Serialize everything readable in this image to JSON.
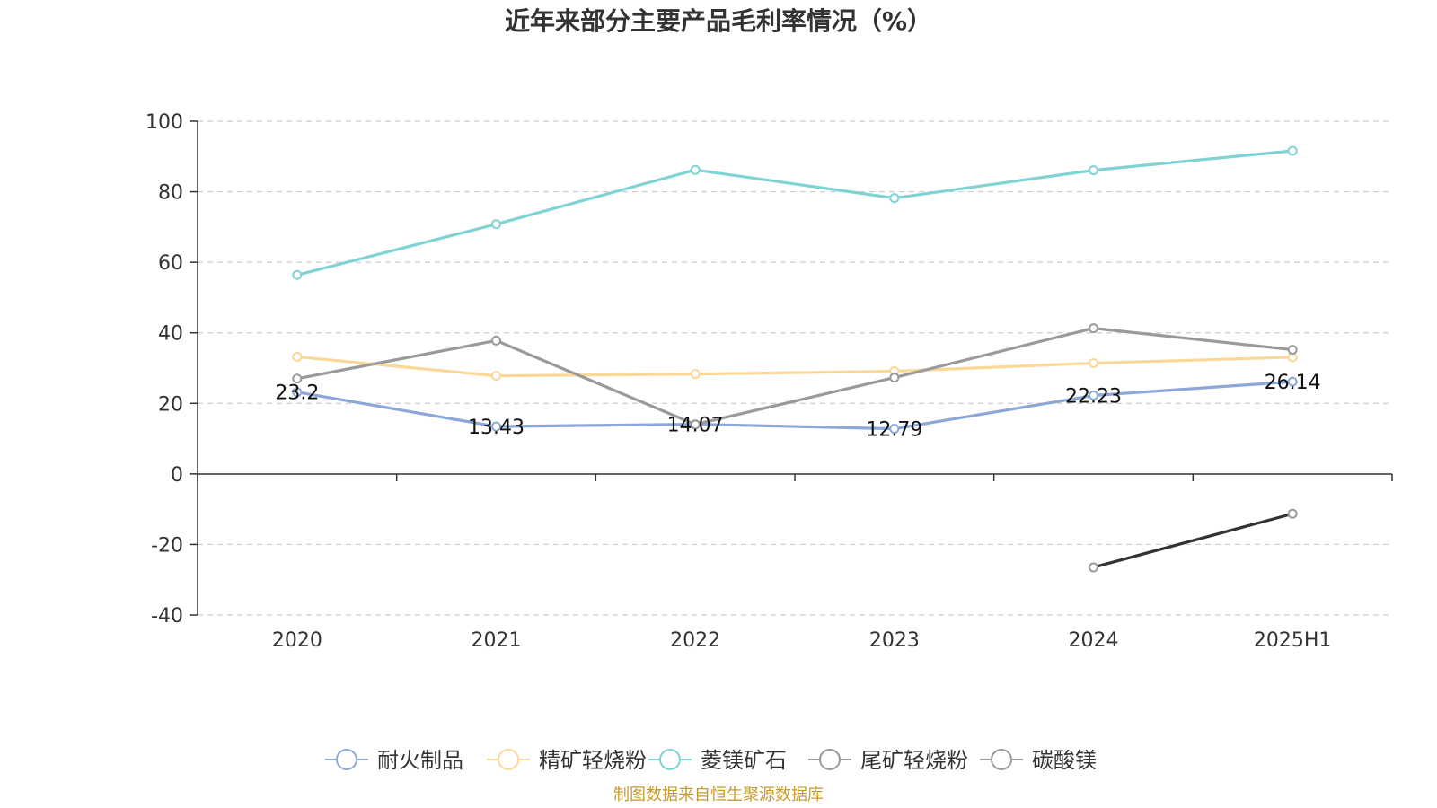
{
  "chart_data": {
    "type": "line",
    "title": "近年来部分主要产品毛利率情况（%）",
    "categories": [
      "2020",
      "2021",
      "2022",
      "2023",
      "2024",
      "2025H1"
    ],
    "ylim": [
      -40,
      100
    ],
    "yticks": [
      100,
      80,
      60,
      40,
      20,
      0,
      -20,
      -40
    ],
    "grid": true,
    "legend_position": "bottom",
    "series": [
      {
        "name": "耐火制品",
        "color": "#8ba8d8",
        "values": [
          23.2,
          13.43,
          14.07,
          12.79,
          22.23,
          26.14
        ],
        "show_labels": true
      },
      {
        "name": "精矿轻烧粉",
        "color": "#fcd898",
        "values": [
          33.2,
          27.8,
          28.3,
          29.1,
          31.4,
          33.1
        ],
        "show_labels": false
      },
      {
        "name": "菱镁矿石",
        "color": "#80d3d3",
        "values": [
          56.4,
          70.8,
          86.2,
          78.2,
          86.1,
          91.6
        ],
        "show_labels": false
      },
      {
        "name": "尾矿轻烧粉",
        "color": "#9a9a9a",
        "values": [
          27.0,
          37.8,
          14.0,
          27.3,
          41.3,
          35.2
        ],
        "show_labels": false
      },
      {
        "name": "碳酸镁",
        "color": "#333333",
        "marker_color": "#9a9a9a",
        "legend_color": "#9a9a9a",
        "values": [
          null,
          null,
          null,
          null,
          -26.5,
          -11.3
        ],
        "show_labels": false
      }
    ]
  },
  "source": "制图数据来自恒生聚源数据库"
}
